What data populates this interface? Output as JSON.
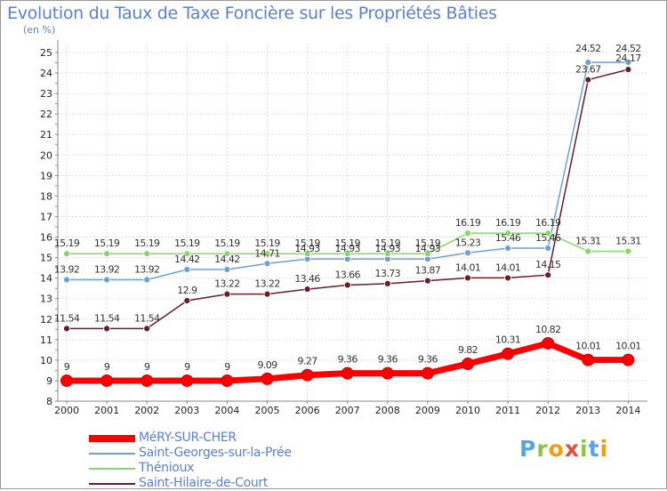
{
  "title": "Evolution du Taux de Taxe Foncière sur les Propriétés Bâties",
  "unit": "(en %)",
  "logo": {
    "letters": [
      "P",
      "r",
      "o",
      "x",
      "i",
      "t",
      "i"
    ],
    "colors": [
      "#5aa3e0",
      "#8cc63f",
      "#f39c12",
      "#e74c3c",
      "#8cc63f",
      "#5aa3e0",
      "#f39c12"
    ]
  },
  "chart_data": {
    "type": "line",
    "title": "Evolution du Taux de Taxe Foncière sur les Propriétés Bâties",
    "ylabel": "(en %)",
    "xlabel": "",
    "ylim": [
      8,
      25
    ],
    "grid": true,
    "x": [
      "2000",
      "2001",
      "2002",
      "2003",
      "2004",
      "2005",
      "2006",
      "2007",
      "2008",
      "2009",
      "2010",
      "2011",
      "2012",
      "2013",
      "2014"
    ],
    "yticks": [
      "8",
      "9",
      "10",
      "11",
      "12",
      "13",
      "14",
      "15",
      "16",
      "17",
      "18",
      "19",
      "20",
      "21",
      "22",
      "23",
      "24",
      "25"
    ],
    "series": [
      {
        "name": "MéRY-SUR-CHER",
        "color": "#ff0000",
        "values": [
          9,
          9,
          9,
          9,
          9,
          9.09,
          9.27,
          9.36,
          9.36,
          9.36,
          9.82,
          10.31,
          10.82,
          10.01,
          10.01
        ],
        "labels": [
          "9",
          "9",
          "9",
          "9",
          "9",
          "9.09",
          "9.27",
          "9.36",
          "9.36",
          "9.36",
          "9.82",
          "10.31",
          "10.82",
          "10.01",
          "10.01"
        ]
      },
      {
        "name": "Saint-Georges-sur-la-Prée",
        "color": "#6e9fd9",
        "values": [
          13.92,
          13.92,
          13.92,
          14.42,
          14.42,
          14.71,
          14.93,
          14.93,
          14.93,
          14.93,
          15.23,
          15.46,
          15.46,
          24.52,
          24.52
        ],
        "labels": [
          "13.92",
          "13.92",
          "13.92",
          "14.42",
          "14.42",
          "14.71",
          "14.93",
          "14.93",
          "14.93",
          "14.93",
          "15.23",
          "15.46",
          "15.46",
          "24.52",
          "24.52"
        ]
      },
      {
        "name": "Thénioux",
        "color": "#88d66a",
        "values": [
          15.19,
          15.19,
          15.19,
          15.19,
          15.19,
          15.19,
          15.19,
          15.19,
          15.19,
          15.19,
          16.19,
          16.19,
          16.19,
          15.31,
          15.31
        ],
        "labels": [
          "15.19",
          "15.19",
          "15.19",
          "15.19",
          "15.19",
          "15.19",
          "15.19",
          "15.19",
          "15.19",
          "15.19",
          "16.19",
          "16.19",
          "16.19",
          "15.31",
          "15.31"
        ]
      },
      {
        "name": "Saint-Hilaire-de-Court",
        "color": "#6b1c24",
        "values": [
          11.54,
          11.54,
          11.54,
          12.9,
          13.22,
          13.22,
          13.46,
          13.66,
          13.73,
          13.87,
          14.01,
          14.01,
          14.15,
          23.67,
          24.17
        ],
        "labels": [
          "11.54",
          "11.54",
          "11.54",
          "12.9",
          "13.22",
          "13.22",
          "13.46",
          "13.66",
          "13.73",
          "13.87",
          "14.01",
          "14.01",
          "14.15",
          "23.67",
          "24.17"
        ]
      }
    ]
  }
}
